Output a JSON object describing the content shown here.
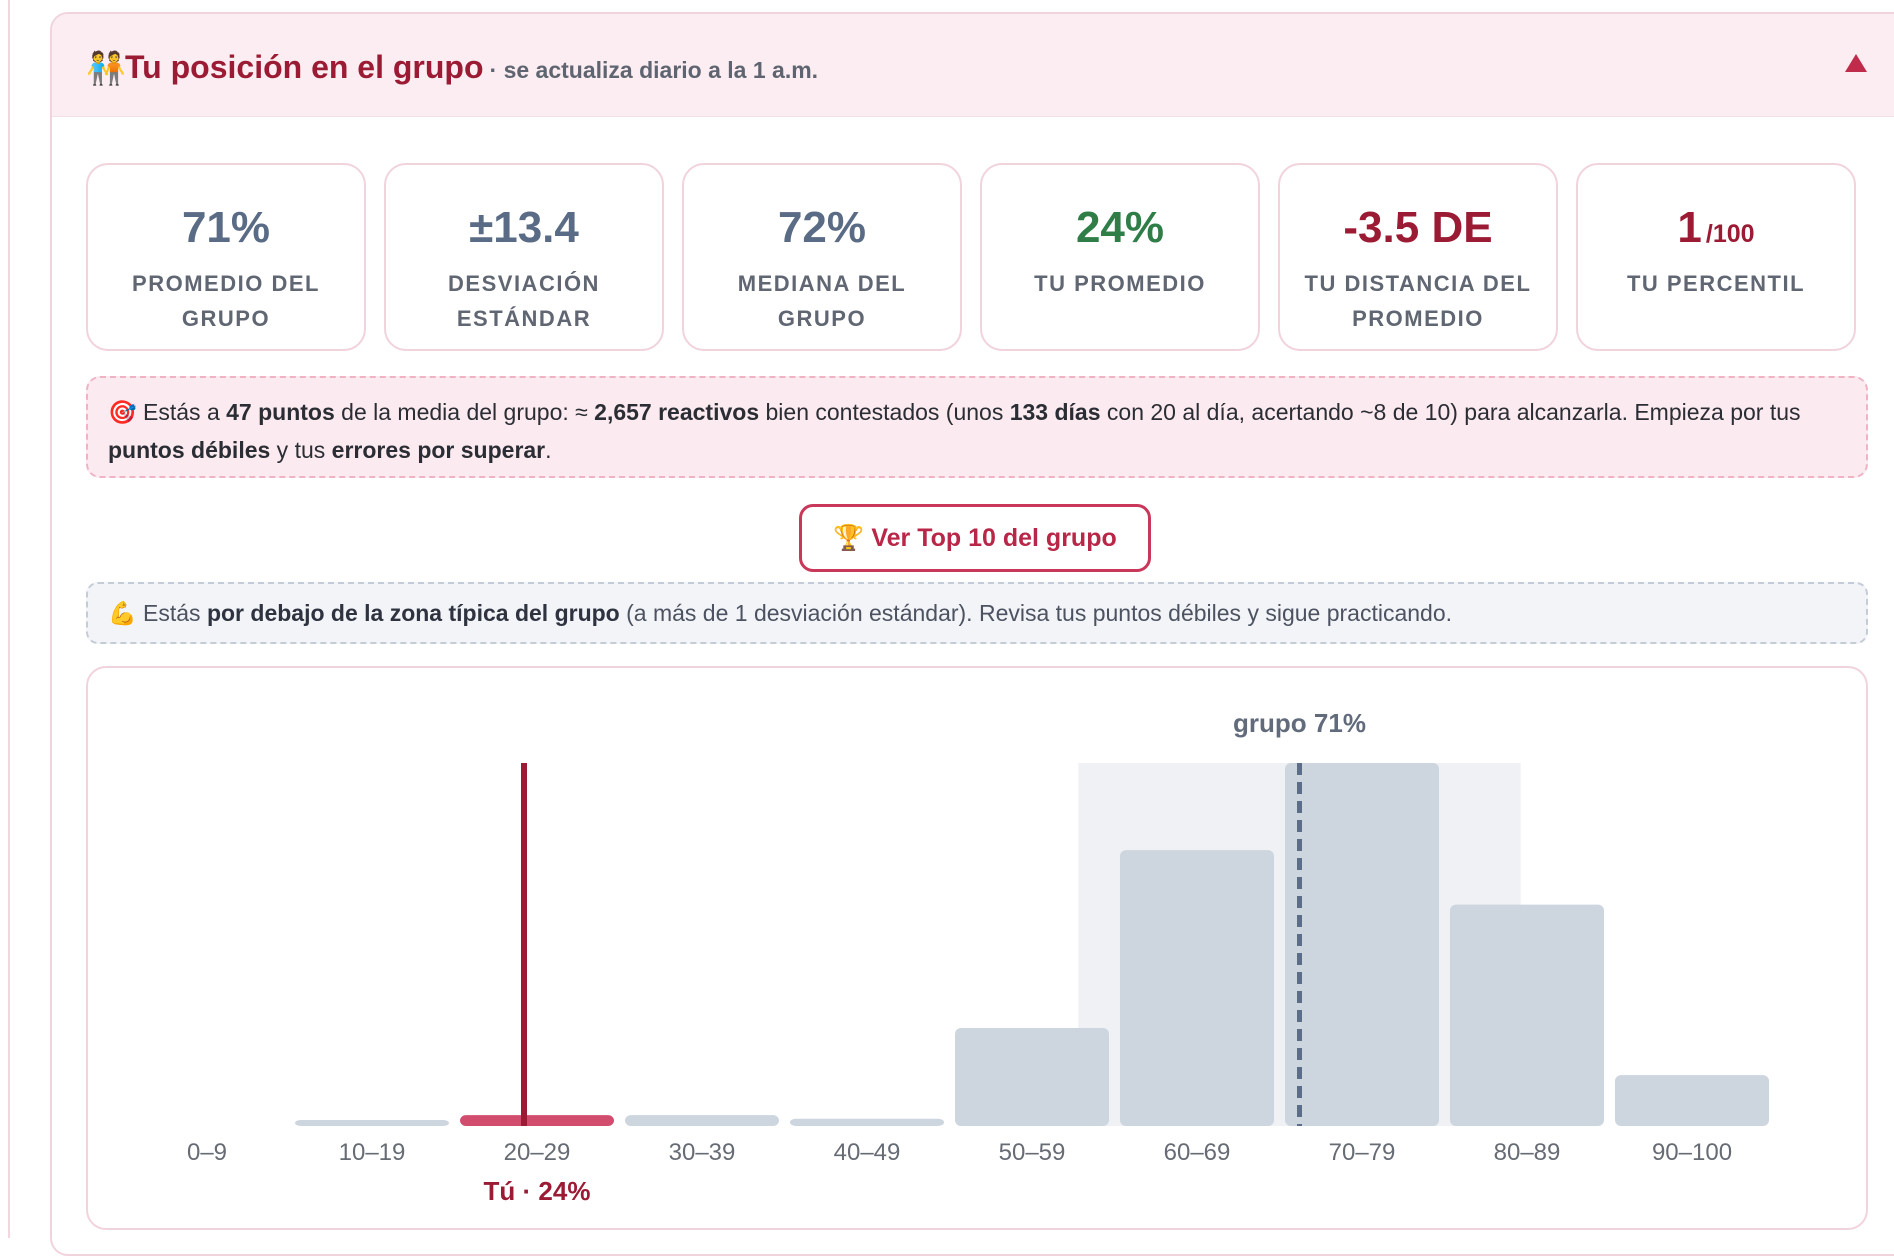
{
  "header": {
    "icon": "people-holding-hands-icon",
    "title": "Tu posición en el grupo",
    "subtitle": "· se actualiza diario a la 1 a.m."
  },
  "stats": [
    {
      "value": "71%",
      "label": "Promedio del grupo",
      "color": "#5a6b85"
    },
    {
      "value": "±13.4",
      "label": "Desviación estándar",
      "color": "#5a6b85"
    },
    {
      "value": "72%",
      "label": "Mediana del grupo",
      "color": "#5a6b85"
    },
    {
      "value": "24%",
      "label": "Tu promedio",
      "color": "#2f7d47"
    },
    {
      "value": "-3.5 DE",
      "label": "Tu distancia del promedio",
      "color": "#9b1b34"
    },
    {
      "value": "1",
      "suffix": "/100",
      "label": "Tu percentil",
      "color": "#9b1b34"
    }
  ],
  "goal": {
    "icon": "target-icon",
    "t1": "Estás a ",
    "b1": "47 puntos",
    "t2": " de la media del grupo: ≈ ",
    "b2": "2,657 reactivos",
    "t3": " bien contestados (unos ",
    "b3": "133 días",
    "t4": " con 20 al día, acertando ~8 de 10) para alcanzarla. Empieza por tus ",
    "b4": "puntos débiles",
    "t5": " y tus ",
    "b5": "errores por superar",
    "t6": "."
  },
  "top_button": {
    "icon": "trophy-icon",
    "label": "Ver Top 10 del grupo"
  },
  "note": {
    "icon": "flexed-biceps-icon",
    "t1": "Estás ",
    "b1": "por debajo de la zona típica del grupo",
    "t2": " (a más de 1 desviación estándar). Revisa tus puntos débiles y sigue practicando."
  },
  "chart_data": {
    "type": "bar",
    "categories": [
      "0–9",
      "10–19",
      "20–29",
      "30–39",
      "40–49",
      "50–59",
      "60–69",
      "70–79",
      "80–89",
      "90–100"
    ],
    "values": [
      0,
      1,
      3,
      3,
      2,
      27,
      76,
      100,
      61,
      14
    ],
    "ylim": [
      0,
      100
    ],
    "highlight_category": "20–29",
    "you_value": 24,
    "you_label": "Tú · 24%",
    "group_mean": 71,
    "group_mean_label": "grupo 71%",
    "typical_zone": [
      57.6,
      84.4
    ],
    "colors": {
      "bar": "#cdd5df",
      "you_bar": "#d24d6d",
      "you_line": "#9b1b34",
      "zone": "#eff1f4",
      "mean_line": "#5c6d87"
    }
  }
}
